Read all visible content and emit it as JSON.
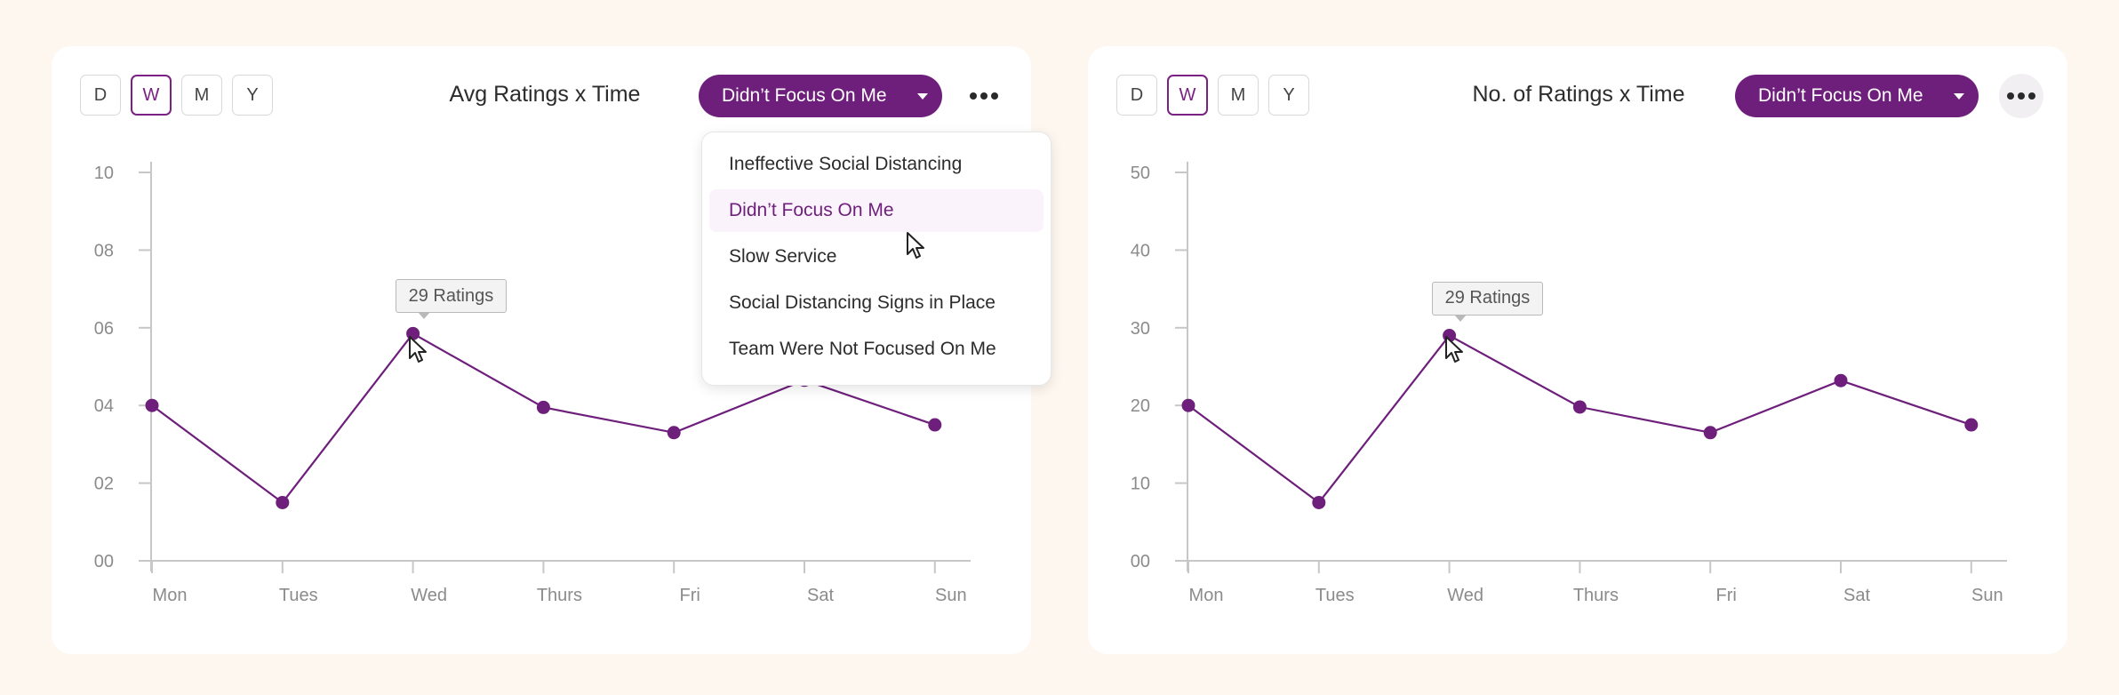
{
  "colors": {
    "accent": "#6e1f7b",
    "background": "#fdf7f0",
    "card": "#ffffff",
    "axis": "#c7c7c7"
  },
  "panels": [
    {
      "period_buttons": [
        {
          "label": "D",
          "active": false
        },
        {
          "label": "W",
          "active": true
        },
        {
          "label": "M",
          "active": false
        },
        {
          "label": "Y",
          "active": false
        }
      ],
      "title": "Avg Ratings x Time",
      "filter_label": "Didn’t Focus On Me",
      "more_icon": "more-horizontal-icon",
      "tooltip": "29 Ratings",
      "dropdown_open": true,
      "dropdown_options": [
        "Ineffective Social Distancing",
        "Didn’t Focus On Me",
        "Slow Service",
        "Social Distancing Signs in Place",
        "Team Were Not Focused On Me"
      ],
      "dropdown_selected": "Didn’t Focus On Me"
    },
    {
      "period_buttons": [
        {
          "label": "D",
          "active": false
        },
        {
          "label": "W",
          "active": true
        },
        {
          "label": "M",
          "active": false
        },
        {
          "label": "Y",
          "active": false
        }
      ],
      "title": "No. of Ratings x Time",
      "filter_label": "Didn’t Focus On Me",
      "more_icon": "more-horizontal-icon",
      "tooltip": "29 Ratings",
      "dropdown_open": false
    }
  ],
  "chart_data": [
    {
      "type": "line",
      "title": "Avg Ratings x Time",
      "categories": [
        "Mon",
        "Tues",
        "Wed",
        "Thurs",
        "Fri",
        "Sat",
        "Sun"
      ],
      "values": [
        4.0,
        1.5,
        5.85,
        3.95,
        3.3,
        4.65,
        3.5
      ],
      "yticks": [
        "00",
        "02",
        "04",
        "06",
        "08",
        "10"
      ],
      "ylim": [
        0,
        10
      ],
      "grid": false,
      "highlight": {
        "index": 2,
        "label": "29 Ratings"
      }
    },
    {
      "type": "line",
      "title": "No. of Ratings x Time",
      "categories": [
        "Mon",
        "Tues",
        "Wed",
        "Thurs",
        "Fri",
        "Sat",
        "Sun"
      ],
      "values": [
        20,
        7.5,
        29,
        19.8,
        16.5,
        23.2,
        17.5
      ],
      "yticks": [
        "00",
        "10",
        "20",
        "30",
        "40",
        "50"
      ],
      "ylim": [
        0,
        50
      ],
      "grid": false,
      "highlight": {
        "index": 2,
        "label": "29 Ratings"
      }
    }
  ]
}
